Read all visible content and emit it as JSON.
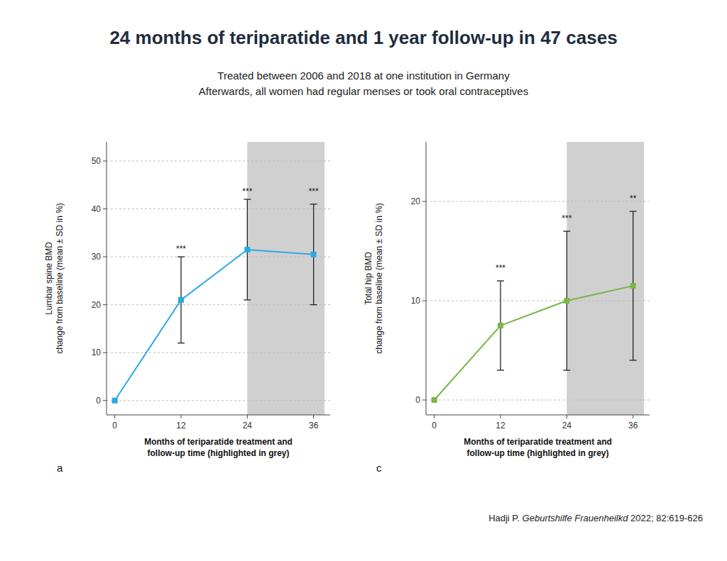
{
  "title": "24 months of teriparatide and 1 year follow-up in 47 cases",
  "subtitle": [
    "Treated between 2006 and 2018 at one institution in Germany",
    "Afterwards, all women had regular menses or took oral contraceptives"
  ],
  "annotations": [
    "Hadji P. ",
    "Geburtshilfe Frauenheilkd",
    " 2022; 82:619-626"
  ],
  "chart_data": [
    {
      "type": "line",
      "label": "a",
      "x": [
        0,
        12,
        24,
        36
      ],
      "series": [
        {
          "values": [
            0,
            21,
            31.5,
            30.5
          ],
          "errors": [
            0,
            9,
            10.5,
            10.5
          ],
          "color": "#29aae2",
          "marker": "square"
        }
      ],
      "xlabel": "Months of teriparatide treatment and\nfollow-up time (highlighted in grey)",
      "ylabel": "Lumbar spine BMD\nchange from baseline (mean ± SD in %)",
      "xlim": [
        -1.5,
        39
      ],
      "ylim": [
        -3,
        54
      ],
      "xticks": [
        0,
        12,
        24,
        36
      ],
      "yticks": [
        0,
        10,
        20,
        30,
        40,
        50
      ],
      "grid": true,
      "highlight": {
        "x": [
          24,
          38
        ],
        "color": "#d0d0d0"
      },
      "annotations": [
        {
          "x": 12,
          "y": 31,
          "text": "***"
        },
        {
          "x": 24,
          "y": 43,
          "text": "***"
        },
        {
          "x": 36,
          "y": 43,
          "text": "***"
        }
      ]
    },
    {
      "type": "line",
      "label": "c",
      "x": [
        0,
        12,
        24,
        36
      ],
      "series": [
        {
          "values": [
            0,
            7.5,
            10,
            11.5
          ],
          "errors": [
            0,
            4.5,
            7,
            7.5
          ],
          "color": "#7ab648",
          "marker": "square"
        }
      ],
      "xlabel": "Months of teriparatide treatment and\nfollow-up time (highlighted in grey)",
      "ylabel": "Total hip BMD\nchange from baseline (mean ± SD in %)",
      "xlim": [
        -1.5,
        39
      ],
      "ylim": [
        -1.5,
        26
      ],
      "xticks": [
        0,
        12,
        24,
        36
      ],
      "yticks": [
        0,
        10,
        20
      ],
      "grid": true,
      "highlight": {
        "x": [
          24,
          38
        ],
        "color": "#d0d0d0"
      },
      "annotations": [
        {
          "x": 12,
          "y": 13,
          "text": "***"
        },
        {
          "x": 24,
          "y": 18,
          "text": "***"
        },
        {
          "x": 36,
          "y": 20,
          "text": "**"
        }
      ]
    }
  ]
}
